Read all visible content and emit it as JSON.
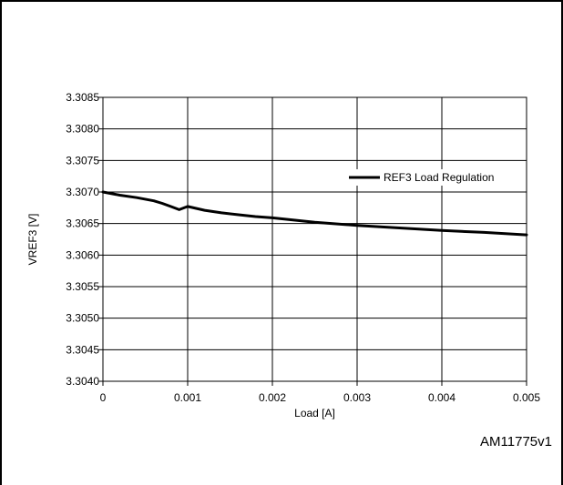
{
  "chart_data": {
    "type": "line",
    "title": "",
    "xlabel": "Load [A]",
    "ylabel": "VREF3 [V]",
    "xlim": [
      0,
      0.005
    ],
    "ylim": [
      3.304,
      3.3085
    ],
    "x_ticks": [
      "0",
      "0.001",
      "0.002",
      "0.003",
      "0.004",
      "0.005"
    ],
    "y_ticks": [
      "3.3040",
      "3.3045",
      "3.3050",
      "3.3055",
      "3.3060",
      "3.3065",
      "3.3070",
      "3.3075",
      "3.3080",
      "3.3085"
    ],
    "grid": true,
    "legend_position": "top-right",
    "series": [
      {
        "name": "REF3 Load Regulation",
        "color": "#000000",
        "x": [
          0,
          0.0002,
          0.0004,
          0.0006,
          0.0007,
          0.0008,
          0.0009,
          0.001,
          0.0012,
          0.0014,
          0.0016,
          0.0018,
          0.002,
          0.0025,
          0.003,
          0.0035,
          0.004,
          0.0045,
          0.005
        ],
        "y": [
          3.307,
          3.30695,
          3.30691,
          3.30686,
          3.30682,
          3.30677,
          3.30672,
          3.30677,
          3.30671,
          3.30667,
          3.30664,
          3.30661,
          3.30659,
          3.30652,
          3.30647,
          3.30643,
          3.30639,
          3.30636,
          3.30632
        ]
      }
    ]
  },
  "figure_id": "AM11775v1"
}
